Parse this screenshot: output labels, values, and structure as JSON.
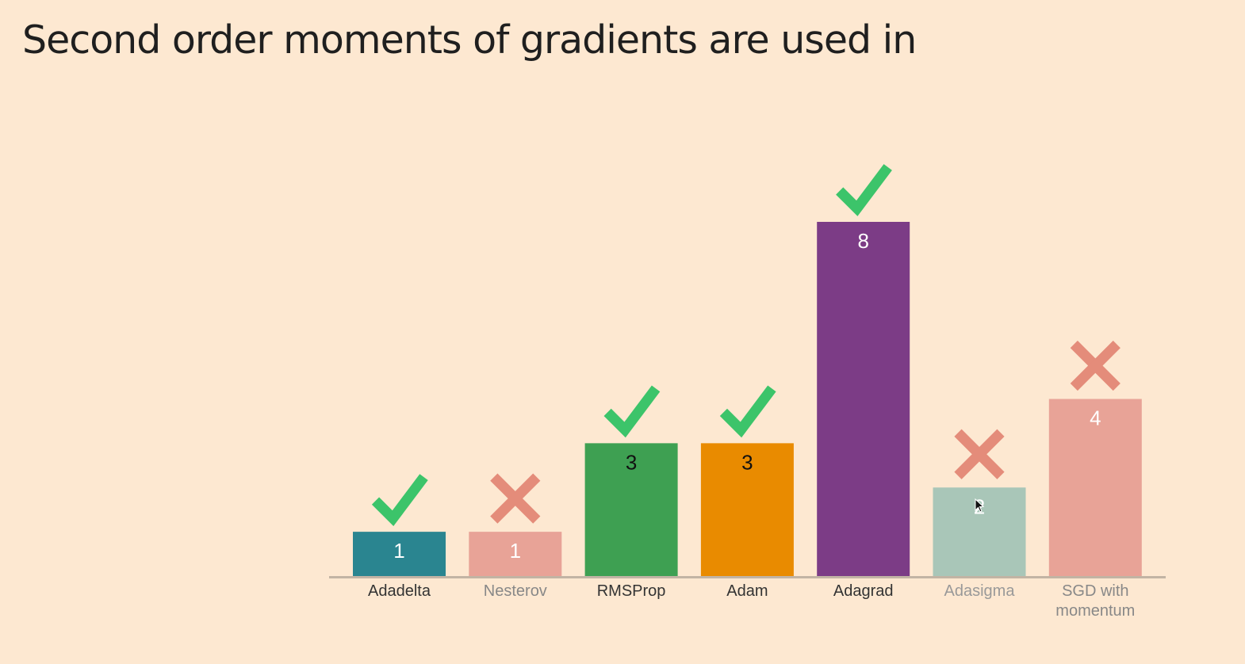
{
  "title": "Second order moments of gradients are used in",
  "chart_data": {
    "type": "bar",
    "title": "",
    "xlabel": "",
    "ylabel": "",
    "ylim": [
      0,
      8
    ],
    "grid": false,
    "categories": [
      "Adadelta",
      "Nesterov",
      "RMSProp",
      "Adam",
      "Adagrad",
      "Adasigma",
      "SGD with momentum"
    ],
    "category_lines": [
      [
        "Adadelta"
      ],
      [
        "Nesterov"
      ],
      [
        "RMSProp"
      ],
      [
        "Adam"
      ],
      [
        "Adagrad"
      ],
      [
        "Adasigma"
      ],
      [
        "SGD with",
        "momentum"
      ]
    ],
    "values": [
      1,
      1,
      3,
      3,
      8,
      2,
      4
    ],
    "data_labels": [
      "1",
      "1",
      "3",
      "3",
      "8",
      "2",
      "4"
    ],
    "correct": [
      true,
      false,
      true,
      true,
      true,
      false,
      false
    ],
    "bar_colors": [
      "#2a8590",
      "#e8a397",
      "#3ea052",
      "#e98b00",
      "#7c3c86",
      "#a9c6b8",
      "#e8a397"
    ],
    "label_colors": [
      "#ffffff",
      "#ffffff",
      "#111111",
      "#111111",
      "#ffffff",
      "#ffffff",
      "#ffffff"
    ],
    "category_label_colors": [
      "#333333",
      "#888888",
      "#333333",
      "#333333",
      "#333333",
      "#999999",
      "#888888"
    ],
    "check_color": "#3cc46a",
    "cross_color": "#e48c7a",
    "axis_color": "#c2b4a4"
  }
}
